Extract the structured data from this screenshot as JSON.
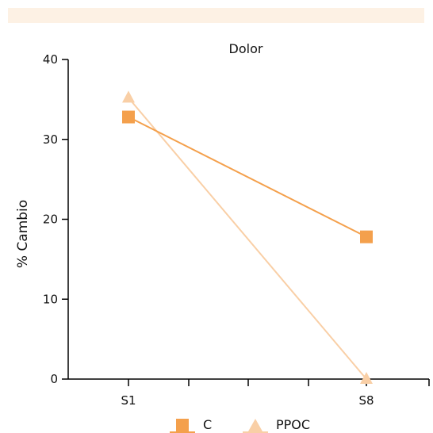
{
  "chart_data": {
    "type": "line",
    "title": "Dolor",
    "xlabel": "",
    "ylabel": "% Cambio",
    "categories": [
      "S1",
      "S8"
    ],
    "ylim": [
      0,
      40
    ],
    "yticks": [
      0,
      10,
      20,
      30,
      40
    ],
    "grid": false,
    "legend_position": "bottom",
    "series": [
      {
        "name": "C",
        "marker": "square",
        "color": "#f4a04c",
        "values": [
          32.8,
          17.8
        ]
      },
      {
        "name": "PPOC",
        "marker": "triangle",
        "color": "#f9cfa6",
        "values": [
          35.2,
          0
        ]
      }
    ]
  }
}
